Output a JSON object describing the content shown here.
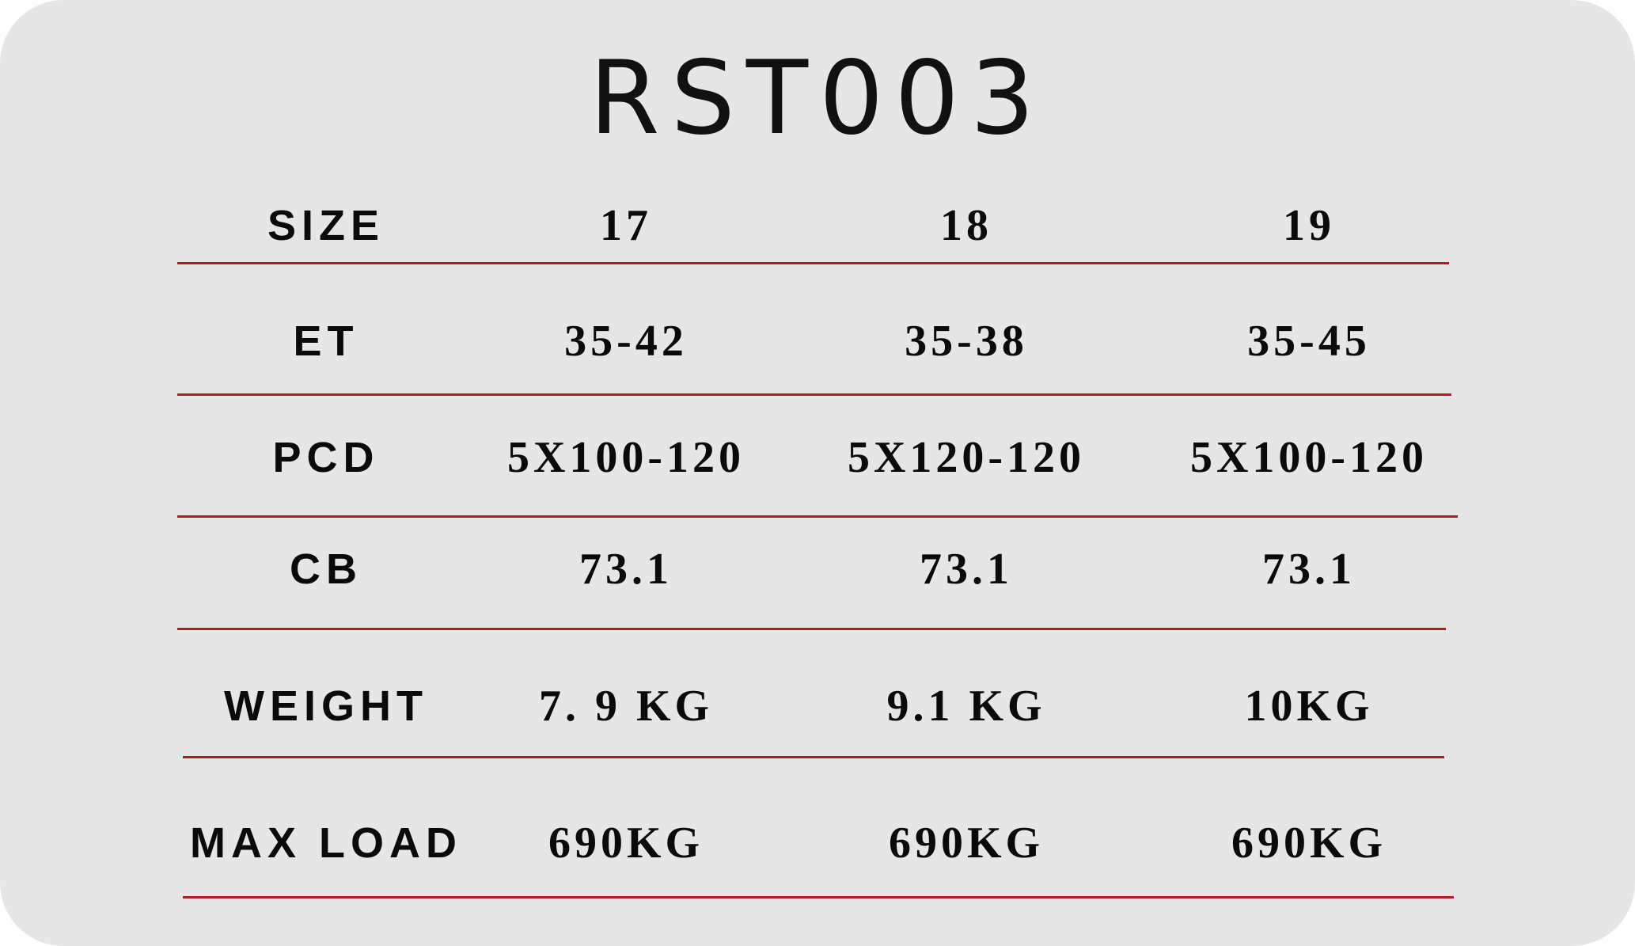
{
  "title": "RST003",
  "accent_color": "#b01c24",
  "rows": [
    {
      "label": "SIZE",
      "values": [
        "17",
        "18",
        "19"
      ]
    },
    {
      "label": "ET",
      "values": [
        "35-42",
        "35-38",
        "35-45"
      ]
    },
    {
      "label": "PCD",
      "values": [
        "5X100-120",
        "5X120-120",
        "5X100-120"
      ]
    },
    {
      "label": "CB",
      "values": [
        "73.1",
        "73.1",
        "73.1"
      ]
    },
    {
      "label": "WEIGHT",
      "values": [
        "7. 9 KG",
        "9.1 KG",
        "10KG"
      ]
    },
    {
      "label": "MAX LOAD",
      "values": [
        "690KG",
        "690KG",
        "690KG"
      ]
    }
  ]
}
